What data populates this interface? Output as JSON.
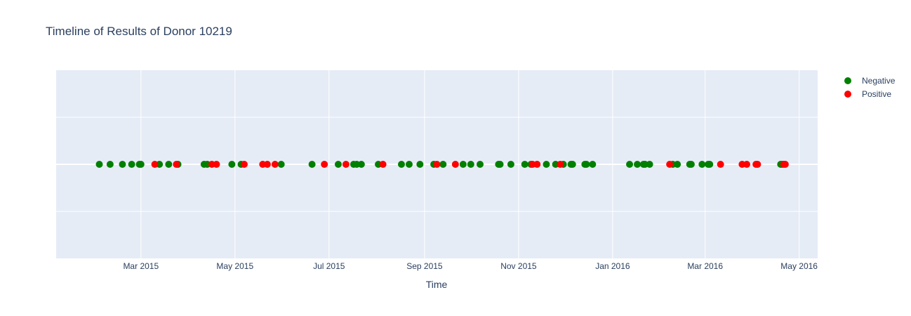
{
  "chart_data": {
    "type": "scatter",
    "title": "Timeline of Results of Donor 10219",
    "xlabel": "Time",
    "ylabel": "",
    "xlim": [
      "2015-01-05",
      "2016-05-13"
    ],
    "x_ticks": [
      {
        "date": "2015-03-01",
        "label": "Mar 2015"
      },
      {
        "date": "2015-05-01",
        "label": "May 2015"
      },
      {
        "date": "2015-07-01",
        "label": "Jul 2015"
      },
      {
        "date": "2015-09-01",
        "label": "Sep 2015"
      },
      {
        "date": "2015-11-01",
        "label": "Nov 2015"
      },
      {
        "date": "2016-01-01",
        "label": "Jan 2016"
      },
      {
        "date": "2016-03-01",
        "label": "Mar 2016"
      },
      {
        "date": "2016-05-01",
        "label": "May 2016"
      }
    ],
    "grid": true,
    "legend_position": "top-right",
    "series": [
      {
        "name": "Negative",
        "color": "#008000",
        "x": [
          "2015-02-02",
          "2015-02-09",
          "2015-02-17",
          "2015-02-23",
          "2015-02-28",
          "2015-03-01",
          "2015-03-13",
          "2015-03-19",
          "2015-03-25",
          "2015-04-11",
          "2015-04-13",
          "2015-04-29",
          "2015-05-05",
          "2015-05-31",
          "2015-06-20",
          "2015-07-07",
          "2015-07-17",
          "2015-07-19",
          "2015-07-22",
          "2015-08-02",
          "2015-08-17",
          "2015-08-22",
          "2015-08-29",
          "2015-09-07",
          "2015-09-13",
          "2015-09-26",
          "2015-10-01",
          "2015-10-07",
          "2015-10-19",
          "2015-10-20",
          "2015-10-27",
          "2015-11-05",
          "2015-11-09",
          "2015-11-19",
          "2015-11-25",
          "2015-11-30",
          "2015-12-05",
          "2015-12-06",
          "2015-12-14",
          "2015-12-15",
          "2015-12-19",
          "2016-01-12",
          "2016-01-17",
          "2016-01-21",
          "2016-01-22",
          "2016-01-25",
          "2016-02-09",
          "2016-02-12",
          "2016-02-20",
          "2016-02-21",
          "2016-02-28",
          "2016-03-03",
          "2016-03-04",
          "2016-04-19",
          "2016-04-20"
        ],
        "y": [
          0,
          0,
          0,
          0,
          0,
          0,
          0,
          0,
          0,
          0,
          0,
          0,
          0,
          0,
          0,
          0,
          0,
          0,
          0,
          0,
          0,
          0,
          0,
          0,
          0,
          0,
          0,
          0,
          0,
          0,
          0,
          0,
          0,
          0,
          0,
          0,
          0,
          0,
          0,
          0,
          0,
          0,
          0,
          0,
          0,
          0,
          0,
          0,
          0,
          0,
          0,
          0,
          0,
          0,
          0
        ]
      },
      {
        "name": "Positive",
        "color": "#ff0000",
        "x": [
          "2015-03-10",
          "2015-03-24",
          "2015-04-16",
          "2015-04-19",
          "2015-05-07",
          "2015-05-19",
          "2015-05-22",
          "2015-05-27",
          "2015-06-28",
          "2015-07-12",
          "2015-08-05",
          "2015-09-09",
          "2015-09-21",
          "2015-11-10",
          "2015-11-13",
          "2015-11-28",
          "2016-02-07",
          "2016-03-11",
          "2016-03-25",
          "2016-03-28",
          "2016-04-03",
          "2016-04-04",
          "2016-04-21",
          "2016-04-22"
        ],
        "y": [
          0,
          0,
          0,
          0,
          0,
          0,
          0,
          0,
          0,
          0,
          0,
          0,
          0,
          0,
          0,
          0,
          0,
          0,
          0,
          0,
          0,
          0,
          0,
          0
        ]
      }
    ]
  }
}
